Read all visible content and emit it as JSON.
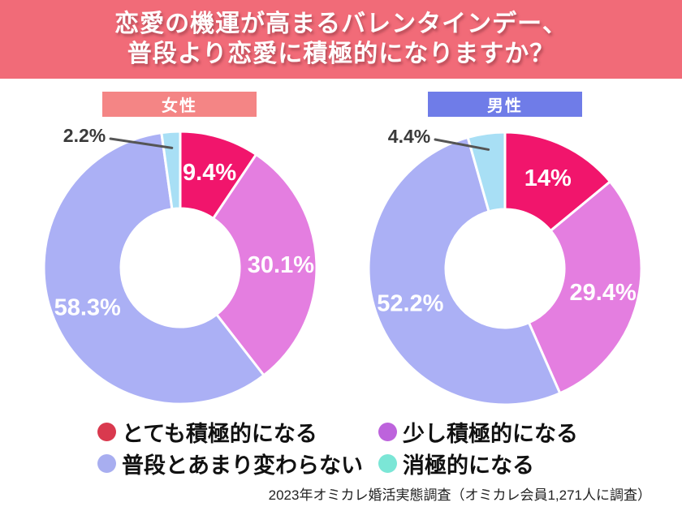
{
  "title": {
    "line1": "恋愛の機運が高まるバレンタインデー、",
    "line2": "普段より恋愛に積極的になりますか？",
    "bg_color": "#F16B78"
  },
  "chart_data": [
    {
      "type": "pie",
      "variant": "donut",
      "group": "女性",
      "badge_color": "#F48585",
      "categories": [
        "とても積極的になる",
        "少し積極的になる",
        "普段とあまり変わらない",
        "消極的になる"
      ],
      "values": [
        9.4,
        30.1,
        58.3,
        2.2
      ],
      "display_labels": [
        "9.4%",
        "30.1%",
        "58.3%",
        "2.2%"
      ],
      "slice_colors": [
        "#F1156C",
        "#E47EE0",
        "#ABB0F5",
        "#A8DFF5"
      ]
    },
    {
      "type": "pie",
      "variant": "donut",
      "group": "男性",
      "badge_color": "#6F7CE8",
      "categories": [
        "とても積極的になる",
        "少し積極的になる",
        "普段とあまり変わらない",
        "消極的になる"
      ],
      "values": [
        14,
        29.4,
        52.2,
        4.4
      ],
      "display_labels": [
        "14%",
        "29.4%",
        "52.2%",
        "4.4%"
      ],
      "slice_colors": [
        "#F1156C",
        "#E47EE0",
        "#ABB0F5",
        "#A8DFF5"
      ]
    }
  ],
  "legend": {
    "items": [
      {
        "label": "とても積極的になる",
        "color": "#D9394E"
      },
      {
        "label": "少し積極的になる",
        "color": "#BD63DC"
      },
      {
        "label": "普段とあまり変わらない",
        "color": "#A8AEF0"
      },
      {
        "label": "消極的になる",
        "color": "#7BE6D6"
      }
    ]
  },
  "footer": {
    "source": "2023年オミカレ婚活実態調査（オミカレ会員1,271人に調査）"
  },
  "style_colors": {
    "banner_text": "#FFFFFF",
    "inside_label": "#FFFFFF",
    "outside_label": "#3A3A3A",
    "callout_line": "#555555",
    "slice_separator": "#FFFFFF"
  }
}
